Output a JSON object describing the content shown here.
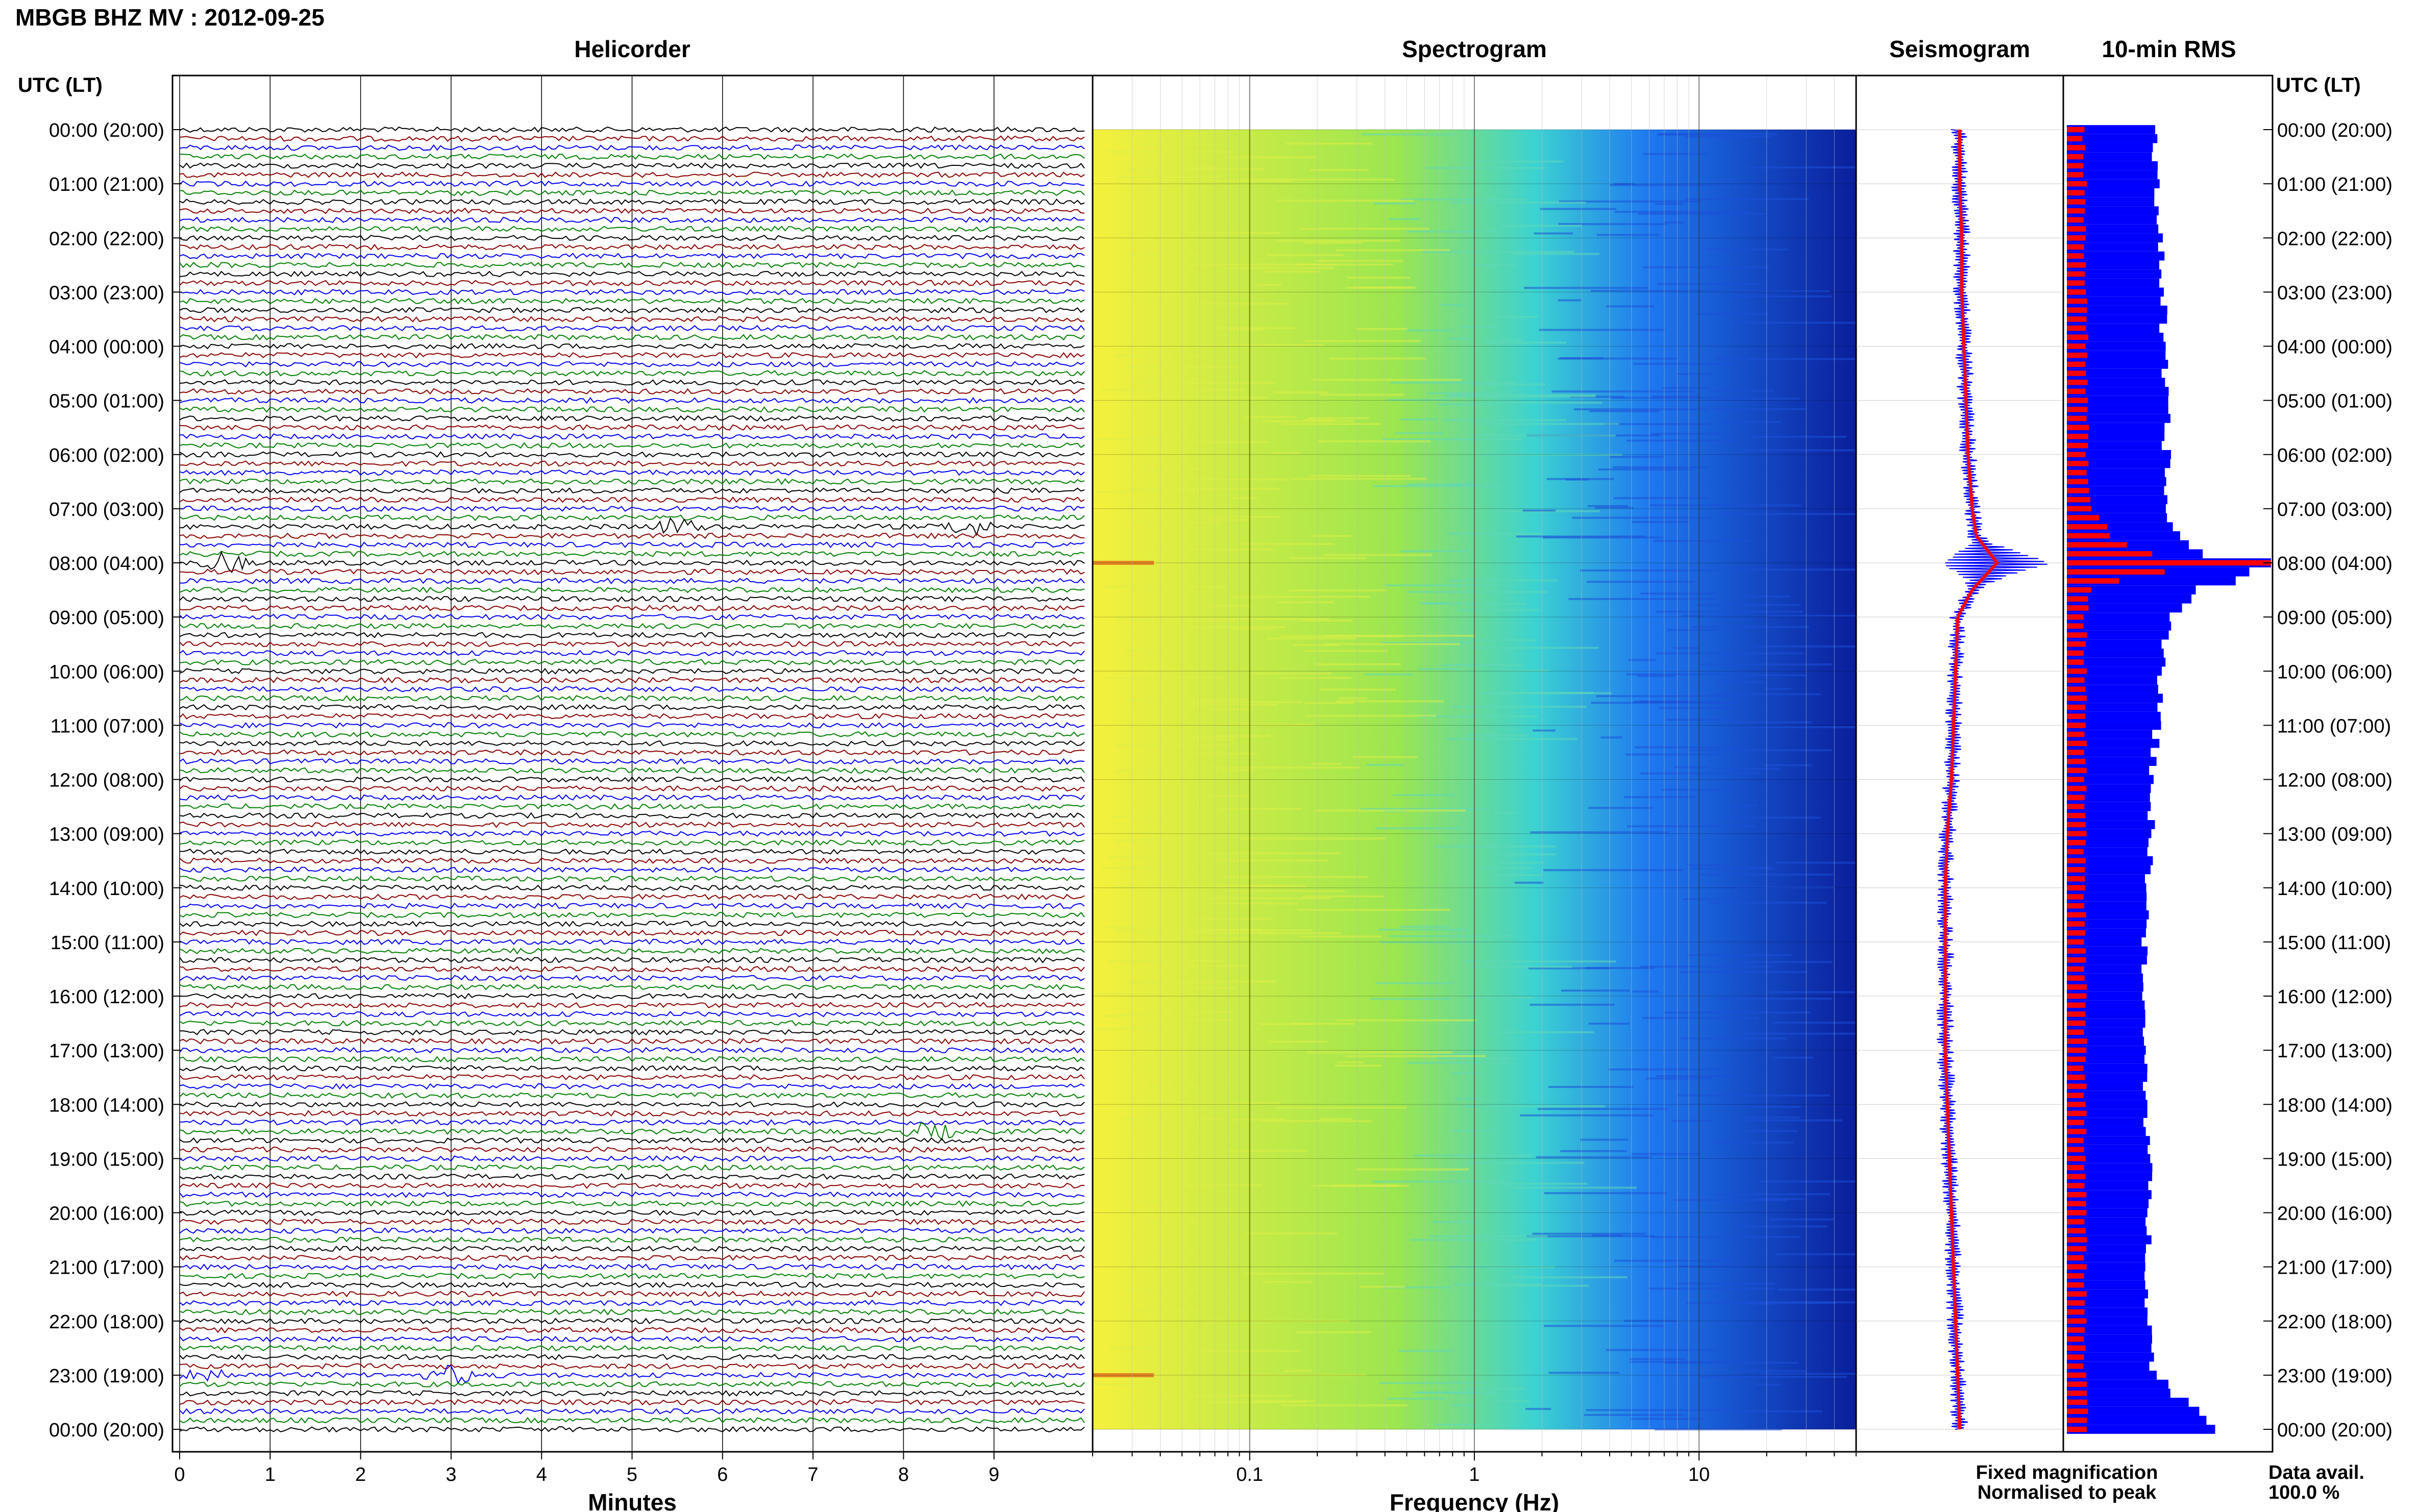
{
  "figure_title": "MBGB BHZ MV : 2012-09-25",
  "time_axis_label": "UTC (LT)",
  "time_ticks": [
    "00:00 (20:00)",
    "01:00 (21:00)",
    "02:00 (22:00)",
    "03:00 (23:00)",
    "04:00 (00:00)",
    "05:00 (01:00)",
    "06:00 (02:00)",
    "07:00 (03:00)",
    "08:00 (04:00)",
    "09:00 (05:00)",
    "10:00 (06:00)",
    "11:00 (07:00)",
    "12:00 (08:00)",
    "13:00 (09:00)",
    "14:00 (10:00)",
    "15:00 (11:00)",
    "16:00 (12:00)",
    "17:00 (13:00)",
    "18:00 (14:00)",
    "19:00 (15:00)",
    "20:00 (16:00)",
    "21:00 (17:00)",
    "22:00 (18:00)",
    "23:00 (19:00)",
    "00:00 (20:00)"
  ],
  "legend": {
    "fixed": "Fixed magnification",
    "normalised": "Normalised to peak",
    "fixed_color": "#0000ff",
    "normalised_color": "#ff0000"
  },
  "data_avail": {
    "label": "Data avail.",
    "value": "100.0 %"
  },
  "chart_data": [
    {
      "type": "line",
      "title": "Helicorder",
      "xlabel": "Minutes",
      "x_ticks": [
        "0",
        "1",
        "2",
        "3",
        "4",
        "5",
        "6",
        "7",
        "8",
        "9"
      ],
      "xlim": [
        0,
        10
      ],
      "rows_per_hour": 6,
      "trace_colors": [
        "#000000",
        "#8b0000",
        "#0000ff",
        "#008000"
      ],
      "notable_events": [
        {
          "hour": 7.3,
          "minute": 5.5
        },
        {
          "hour": 7.3,
          "minute": 8.7
        },
        {
          "hour": 8.0,
          "minute": 0.5
        },
        {
          "hour": 18.5,
          "minute": 8.3
        },
        {
          "hour": 23.0,
          "minute": 3.0
        },
        {
          "hour": 23.0,
          "minute": 0.3
        }
      ]
    },
    {
      "type": "heatmap",
      "title": "Spectrogram",
      "xlabel": "Frequency (Hz)",
      "x_scale": "log",
      "x_ticks": [
        "0.1",
        "1",
        "10"
      ],
      "xlim": [
        0.02,
        50
      ],
      "colormap": [
        "#f5f03c",
        "#9be650",
        "#3cd2d2",
        "#1e78f0",
        "#0a1e9b"
      ]
    },
    {
      "type": "area",
      "title": "Seismogram",
      "series": [
        {
          "name": "Fixed magnification",
          "color": "#0000ff"
        },
        {
          "name": "Normalised to peak",
          "color": "#ff0000"
        }
      ],
      "hours": [
        0,
        1,
        2,
        3,
        4,
        5,
        6,
        7,
        7.5,
        8,
        8.5,
        9,
        10,
        11,
        12,
        13,
        14,
        15,
        16,
        17,
        18,
        19,
        20,
        21,
        22,
        23,
        24
      ],
      "center": [
        0.5,
        0.5,
        0.51,
        0.51,
        0.52,
        0.53,
        0.54,
        0.56,
        0.58,
        0.68,
        0.56,
        0.49,
        0.48,
        0.47,
        0.46,
        0.44,
        0.43,
        0.43,
        0.43,
        0.43,
        0.44,
        0.45,
        0.46,
        0.47,
        0.48,
        0.49,
        0.5
      ]
    },
    {
      "type": "bar",
      "title": "10-min RMS",
      "series": [
        {
          "name": "Fixed magnification",
          "color": "#0000ff"
        },
        {
          "name": "Normalised to peak",
          "color": "#ff0000"
        }
      ],
      "hours": [
        0,
        1,
        2,
        3,
        4,
        5,
        6,
        7,
        7.8,
        8.0,
        8.2,
        8.5,
        9,
        10,
        11,
        12,
        13,
        14,
        15,
        16,
        17,
        18,
        19,
        20,
        21,
        22,
        23,
        24
      ],
      "fixed": [
        0.42,
        0.44,
        0.46,
        0.47,
        0.47,
        0.48,
        0.49,
        0.48,
        0.6,
        1.0,
        0.92,
        0.66,
        0.5,
        0.47,
        0.44,
        0.42,
        0.41,
        0.4,
        0.38,
        0.37,
        0.38,
        0.39,
        0.4,
        0.4,
        0.4,
        0.4,
        0.43,
        0.74
      ],
      "normalised": [
        0.08,
        0.09,
        0.09,
        0.09,
        0.1,
        0.1,
        0.1,
        0.11,
        0.3,
        1.0,
        0.35,
        0.12,
        0.09,
        0.09,
        0.09,
        0.09,
        0.09,
        0.09,
        0.09,
        0.09,
        0.09,
        0.09,
        0.09,
        0.09,
        0.09,
        0.09,
        0.09,
        0.1
      ]
    }
  ]
}
